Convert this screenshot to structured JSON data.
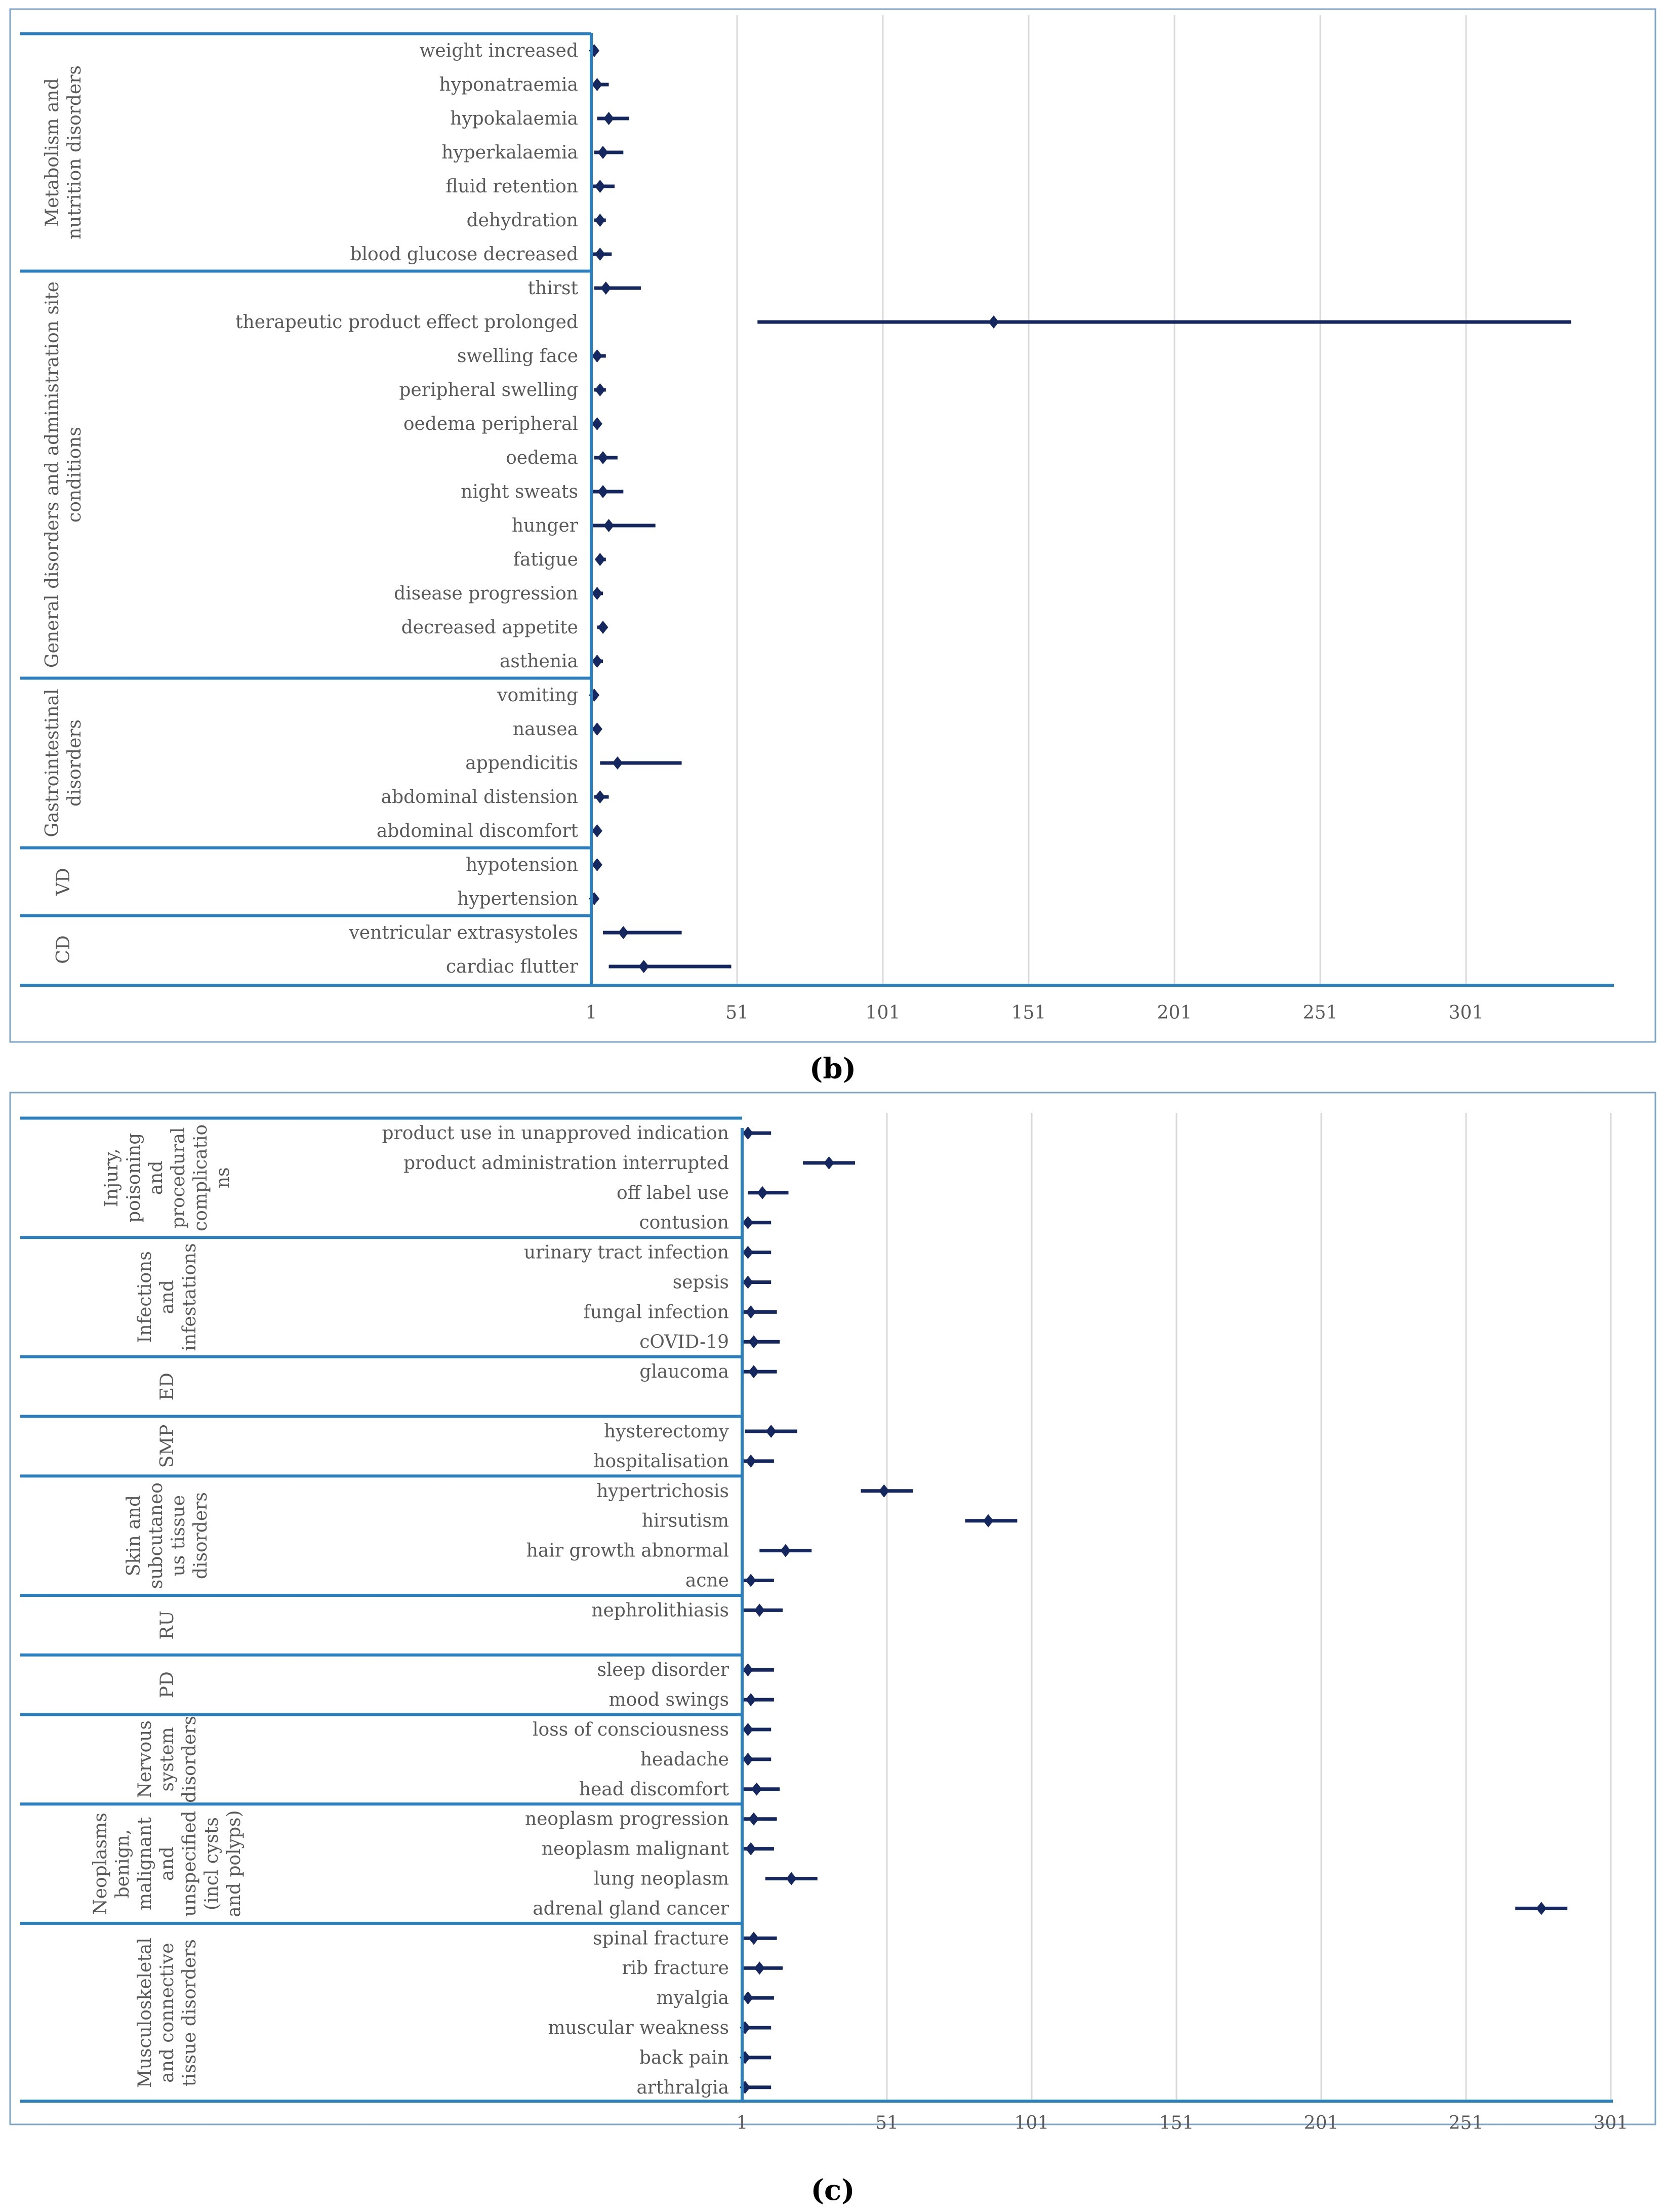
{
  "colors": {
    "series": "#14285f",
    "frame": "#2a7fc1",
    "grid": "#d9d9d9",
    "text": "#595959"
  },
  "chart_data": [
    {
      "type": "forest",
      "caption": "(b)",
      "x_ticks": [
        "1",
        "51",
        "101",
        "151",
        "201",
        "251",
        "301"
      ],
      "xlim": [
        1,
        351
      ],
      "groups": [
        {
          "label": [
            "Metabolism and",
            "nutrition disorders"
          ],
          "rows": [
            {
              "label": "weight increased",
              "value": 2,
              "low": 1,
              "high": 3
            },
            {
              "label": "hyponatraemia",
              "value": 3,
              "low": 1,
              "high": 7
            },
            {
              "label": "hypokalaemia",
              "value": 7,
              "low": 3,
              "high": 14
            },
            {
              "label": "hyperkalaemia",
              "value": 5,
              "low": 2,
              "high": 12
            },
            {
              "label": "fluid retention",
              "value": 4,
              "low": 1,
              "high": 9
            },
            {
              "label": "dehydration",
              "value": 4,
              "low": 2,
              "high": 6
            },
            {
              "label": "blood glucose decreased",
              "value": 4,
              "low": 1,
              "high": 8
            }
          ]
        },
        {
          "label": [
            "General disorders and administration site",
            "conditions"
          ],
          "rows": [
            {
              "label": "thirst",
              "value": 6,
              "low": 2,
              "high": 18
            },
            {
              "label": "therapeutic product effect prolonged",
              "value": 139,
              "low": 58,
              "high": 337
            },
            {
              "label": "swelling face",
              "value": 3,
              "low": 1,
              "high": 6
            },
            {
              "label": "peripheral swelling",
              "value": 4,
              "low": 2,
              "high": 6
            },
            {
              "label": "oedema peripheral",
              "value": 3,
              "low": 1,
              "high": 4
            },
            {
              "label": "oedema",
              "value": 5,
              "low": 2,
              "high": 10
            },
            {
              "label": "night sweats",
              "value": 5,
              "low": 1,
              "high": 12
            },
            {
              "label": "hunger",
              "value": 7,
              "low": 1,
              "high": 23
            },
            {
              "label": "fatigue",
              "value": 4,
              "low": 3,
              "high": 6
            },
            {
              "label": "disease progression",
              "value": 3,
              "low": 2,
              "high": 5
            },
            {
              "label": "decreased appetite",
              "value": 5,
              "low": 3,
              "high": 6
            },
            {
              "label": "asthenia",
              "value": 3,
              "low": 2,
              "high": 5
            }
          ]
        },
        {
          "label": [
            "Gastrointestinal",
            "disorders"
          ],
          "rows": [
            {
              "label": "vomiting",
              "value": 2,
              "low": 1,
              "high": 3
            },
            {
              "label": "nausea",
              "value": 3,
              "low": 2,
              "high": 4
            },
            {
              "label": "appendicitis",
              "value": 10,
              "low": 4,
              "high": 32
            },
            {
              "label": "abdominal distension",
              "value": 4,
              "low": 2,
              "high": 7
            },
            {
              "label": "abdominal discomfort",
              "value": 3,
              "low": 1,
              "high": 4
            }
          ]
        },
        {
          "label": [
            "VD"
          ],
          "rows": [
            {
              "label": "hypotension",
              "value": 3,
              "low": 1,
              "high": 4
            },
            {
              "label": "hypertension",
              "value": 2,
              "low": 1,
              "high": 3
            }
          ]
        },
        {
          "label": [
            "CD"
          ],
          "rows": [
            {
              "label": "ventricular extrasystoles",
              "value": 12,
              "low": 5,
              "high": 32
            },
            {
              "label": "cardiac flutter",
              "value": 19,
              "low": 7,
              "high": 49
            }
          ]
        }
      ]
    },
    {
      "type": "forest",
      "caption": "(c)",
      "x_ticks": [
        "1",
        "51",
        "101",
        "151",
        "201",
        "251",
        "301"
      ],
      "xlim": [
        1,
        301
      ],
      "groups": [
        {
          "label": [
            "Injury,",
            "poisoning",
            "and",
            "procedural",
            "complicatio",
            "ns"
          ],
          "rows": [
            {
              "label": "product use in unapproved indication",
              "value": 3,
              "low": 1,
              "high": 11
            },
            {
              "label": "product administration interrupted",
              "value": 31,
              "low": 22,
              "high": 40
            },
            {
              "label": "off label use",
              "value": 8,
              "low": 3,
              "high": 17
            },
            {
              "label": "contusion",
              "value": 3,
              "low": 1,
              "high": 11
            }
          ]
        },
        {
          "label": [
            "Infections",
            "and",
            "infestations"
          ],
          "rows": [
            {
              "label": "urinary tract infection",
              "value": 3,
              "low": 1,
              "high": 11
            },
            {
              "label": "sepsis",
              "value": 3,
              "low": 1,
              "high": 11
            },
            {
              "label": "fungal infection",
              "value": 4,
              "low": 1,
              "high": 13
            },
            {
              "label": "cOVID-19",
              "value": 5,
              "low": 1,
              "high": 14
            }
          ]
        },
        {
          "label": [
            "ED"
          ],
          "rows": [
            {
              "label": "glaucoma",
              "value": 5,
              "low": 1,
              "high": 13
            }
          ]
        },
        {
          "label": [
            "SMP"
          ],
          "rows": [
            {
              "label": "hysterectomy",
              "value": 11,
              "low": 2,
              "high": 20
            },
            {
              "label": "hospitalisation",
              "value": 4,
              "low": 1,
              "high": 12
            }
          ]
        },
        {
          "label": [
            "Skin and",
            "subcutaneo",
            "us tissue",
            "disorders"
          ],
          "rows": [
            {
              "label": "hypertrichosis",
              "value": 50,
              "low": 42,
              "high": 60
            },
            {
              "label": "hirsutism",
              "value": 86,
              "low": 78,
              "high": 96
            },
            {
              "label": "hair growth abnormal",
              "value": 16,
              "low": 7,
              "high": 25
            },
            {
              "label": "acne",
              "value": 4,
              "low": 1,
              "high": 12
            }
          ]
        },
        {
          "label": [
            "RU"
          ],
          "rows": [
            {
              "label": "nephrolithiasis",
              "value": 7,
              "low": 1,
              "high": 15
            }
          ]
        },
        {
          "label": [
            "PD"
          ],
          "rows": [
            {
              "label": "sleep disorder",
              "value": 3,
              "low": 1,
              "high": 12
            },
            {
              "label": "mood swings",
              "value": 4,
              "low": 1,
              "high": 12
            }
          ]
        },
        {
          "label": [
            "Nervous",
            "system",
            "disorders"
          ],
          "rows": [
            {
              "label": "loss of consciousness",
              "value": 3,
              "low": 1,
              "high": 11
            },
            {
              "label": "headache",
              "value": 3,
              "low": 1,
              "high": 11
            },
            {
              "label": "head discomfort",
              "value": 6,
              "low": 1,
              "high": 14
            }
          ]
        },
        {
          "label": [
            "Neoplasms",
            "benign,",
            "malignant",
            "and",
            "unspecified",
            "(incl cysts",
            "and polyps)"
          ],
          "rows": [
            {
              "label": "neoplasm progression",
              "value": 5,
              "low": 1,
              "high": 13
            },
            {
              "label": "neoplasm malignant",
              "value": 4,
              "low": 1,
              "high": 12
            },
            {
              "label": "lung neoplasm",
              "value": 18,
              "low": 9,
              "high": 27
            },
            {
              "label": "adrenal gland cancer",
              "value": 277,
              "low": 268,
              "high": 286
            }
          ]
        },
        {
          "label": [
            "Musculoskeletal",
            "and connective",
            "tissue disorders"
          ],
          "rows": [
            {
              "label": "spinal fracture",
              "value": 5,
              "low": 1,
              "high": 13
            },
            {
              "label": "rib fracture",
              "value": 7,
              "low": 1,
              "high": 15
            },
            {
              "label": "myalgia",
              "value": 3,
              "low": 1,
              "high": 12
            },
            {
              "label": "muscular weakness",
              "value": 2,
              "low": 1,
              "high": 11
            },
            {
              "label": "back pain",
              "value": 2,
              "low": 1,
              "high": 11
            },
            {
              "label": "arthralgia",
              "value": 2,
              "low": 1,
              "high": 11
            }
          ]
        }
      ]
    }
  ]
}
